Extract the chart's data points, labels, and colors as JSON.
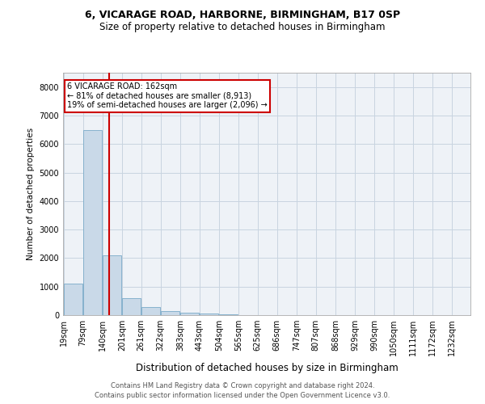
{
  "title1": "6, VICARAGE ROAD, HARBORNE, BIRMINGHAM, B17 0SP",
  "title2": "Size of property relative to detached houses in Birmingham",
  "xlabel": "Distribution of detached houses by size in Birmingham",
  "ylabel": "Number of detached properties",
  "footnote1": "Contains HM Land Registry data © Crown copyright and database right 2024.",
  "footnote2": "Contains public sector information licensed under the Open Government Licence v3.0.",
  "annotation_line1": "6 VICARAGE ROAD: 162sqm",
  "annotation_line2": "← 81% of detached houses are smaller (8,913)",
  "annotation_line3": "19% of semi-detached houses are larger (2,096) →",
  "property_size": 162,
  "bar_color": "#c9d9e8",
  "bar_edge_color": "#7aaac8",
  "vline_color": "#cc0000",
  "annotation_box_color": "#cc0000",
  "grid_color": "#c8d4e0",
  "background_color": "#eef2f7",
  "bins": [
    19,
    79,
    140,
    201,
    261,
    322,
    383,
    443,
    504,
    565,
    625,
    686,
    747,
    807,
    868,
    929,
    990,
    1050,
    1111,
    1172,
    1232
  ],
  "bin_labels": [
    "19sqm",
    "79sqm",
    "140sqm",
    "201sqm",
    "261sqm",
    "322sqm",
    "383sqm",
    "443sqm",
    "504sqm",
    "565sqm",
    "625sqm",
    "686sqm",
    "747sqm",
    "807sqm",
    "868sqm",
    "929sqm",
    "990sqm",
    "1050sqm",
    "1111sqm",
    "1172sqm",
    "1232sqm"
  ],
  "counts": [
    1100,
    6500,
    2100,
    600,
    280,
    130,
    80,
    50,
    30,
    10,
    5,
    0,
    0,
    0,
    0,
    0,
    0,
    0,
    0,
    0
  ],
  "ylim": [
    0,
    8500
  ],
  "yticks": [
    0,
    1000,
    2000,
    3000,
    4000,
    5000,
    6000,
    7000,
    8000
  ]
}
